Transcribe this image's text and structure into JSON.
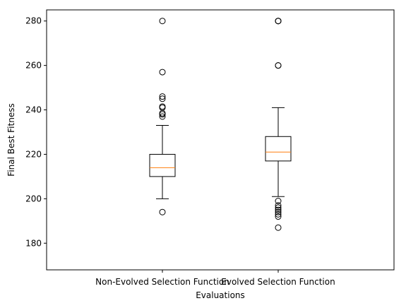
{
  "chart_data": {
    "type": "boxplot",
    "title": "",
    "xlabel": "Evaluations",
    "ylabel": "Final Best Fitness",
    "ylim": [
      168,
      285
    ],
    "yticks": [
      180,
      200,
      220,
      240,
      260,
      280
    ],
    "grid": false,
    "categories": [
      "Non-Evolved Selection Function",
      "Evolved Selection Function"
    ],
    "boxes": [
      {
        "name": "Non-Evolved Selection Function",
        "whisker_low": 200,
        "q1": 210,
        "median": 214,
        "q3": 220,
        "whisker_high": 233,
        "outliers": [
          194,
          237,
          238,
          238.5,
          241,
          241.5,
          245,
          246,
          257,
          280
        ]
      },
      {
        "name": "Evolved Selection Function",
        "whisker_low": 201,
        "q1": 217,
        "median": 221,
        "q3": 228,
        "whisker_high": 241,
        "outliers": [
          187,
          192,
          193,
          194,
          195,
          196,
          197,
          199,
          260,
          260,
          280,
          280,
          280
        ]
      }
    ],
    "colors": {
      "box": "#000000",
      "median": "#ff7f0e",
      "frame": "#000000"
    }
  }
}
